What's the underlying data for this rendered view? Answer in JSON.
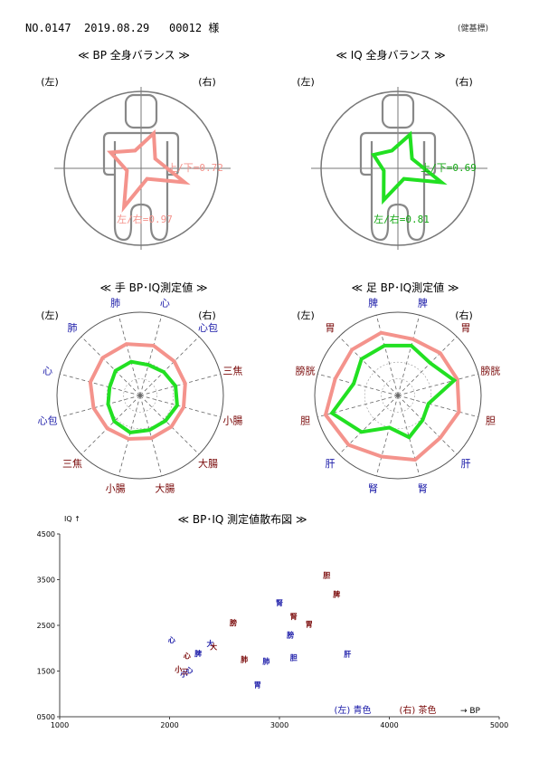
{
  "header": {
    "no": "NO.0147",
    "date": "2019.08.29",
    "id": "00012",
    "honorific": "様",
    "right_note": "(健基標)"
  },
  "side_labels": {
    "left": "(左)",
    "right": "(右)"
  },
  "balance_bp": {
    "title": "≪ BP 全身バランス ≫",
    "color": "#f4938c",
    "updown_label": "上/下=0.72",
    "leftright_label": "左/右=0.97",
    "updown": 0.72,
    "leftright": 0.97
  },
  "balance_iq": {
    "title": "≪ IQ 全身バランス ≫",
    "color": "#22e022",
    "updown_label": "上/下=0.69",
    "leftright_label": "左/右=0.81",
    "updown": 0.69,
    "leftright": 0.81
  },
  "hand_radar": {
    "title": "≪ 手 BP･IQ測定値 ≫",
    "labels": [
      "肺",
      "肺",
      "心",
      "心包",
      "三焦",
      "小腸",
      "大腸",
      "大腸",
      "小腸",
      "三焦",
      "心包",
      "心"
    ],
    "label_colors": [
      "blue",
      "blue",
      "blue",
      "blue",
      "brown",
      "brown",
      "brown",
      "brown",
      "brown",
      "brown",
      "blue",
      "blue"
    ],
    "bp": [
      0.64,
      0.64,
      0.62,
      0.58,
      0.56,
      0.54,
      0.53,
      0.53,
      0.54,
      0.56,
      0.58,
      0.62
    ],
    "iq": [
      0.42,
      0.42,
      0.38,
      0.4,
      0.44,
      0.46,
      0.43,
      0.43,
      0.46,
      0.44,
      0.4,
      0.38
    ]
  },
  "foot_radar": {
    "title": "≪ 足 BP･IQ測定値 ≫",
    "labels": [
      "脾",
      "胃",
      "膀胱",
      "胆",
      "肝",
      "腎",
      "腎",
      "肝",
      "胆",
      "膀胱",
      "胃",
      "脾"
    ],
    "label_colors": [
      "blue",
      "brown",
      "brown",
      "brown",
      "blue",
      "blue",
      "blue",
      "blue",
      "brown",
      "brown",
      "brown",
      "blue"
    ],
    "bp": [
      0.78,
      0.78,
      0.78,
      0.9,
      0.84,
      0.76,
      0.8,
      0.72,
      0.76,
      0.74,
      0.72,
      0.7
    ],
    "iq": [
      0.62,
      0.62,
      0.55,
      0.82,
      0.62,
      0.4,
      0.52,
      0.42,
      0.38,
      0.7,
      0.55,
      0.62
    ]
  },
  "chart_data": {
    "type": "scatter",
    "title": "≪ BP･IQ 測定値散布図 ≫",
    "xlabel": "→ BP",
    "ylabel": "IQ ↑",
    "xlim": [
      1000,
      5000
    ],
    "ylim": [
      500,
      4500
    ],
    "xticks": [
      "1000",
      "2000",
      "3000",
      "4000",
      "5000"
    ],
    "yticks": [
      "0500",
      "1500",
      "2500",
      "3500",
      "4500"
    ],
    "legend_left": "(左) 青色",
    "legend_right": "(右) 茶色",
    "colors": {
      "left": "#1a1aa8",
      "right": "#7a0a0a"
    },
    "points": [
      {
        "label": "心",
        "x": 2020,
        "y": 2120,
        "side": "left"
      },
      {
        "label": "脾",
        "x": 2260,
        "y": 1830,
        "side": "left"
      },
      {
        "label": "大",
        "x": 2370,
        "y": 2040,
        "side": "left"
      },
      {
        "label": "小",
        "x": 2130,
        "y": 1380,
        "side": "left"
      },
      {
        "label": "心",
        "x": 2180,
        "y": 1460,
        "side": "left"
      },
      {
        "label": "胃",
        "x": 2800,
        "y": 1140,
        "side": "left"
      },
      {
        "label": "肺",
        "x": 2880,
        "y": 1660,
        "side": "left"
      },
      {
        "label": "肝",
        "x": 3620,
        "y": 1820,
        "side": "left"
      },
      {
        "label": "胆",
        "x": 3130,
        "y": 1740,
        "side": "left"
      },
      {
        "label": "腎",
        "x": 3000,
        "y": 2940,
        "side": "left"
      },
      {
        "label": "膀",
        "x": 3100,
        "y": 2230,
        "side": "left"
      },
      {
        "label": "心",
        "x": 2160,
        "y": 1780,
        "side": "right"
      },
      {
        "label": "大",
        "x": 2400,
        "y": 1980,
        "side": "right"
      },
      {
        "label": "三",
        "x": 2140,
        "y": 1430,
        "side": "right"
      },
      {
        "label": "小",
        "x": 2080,
        "y": 1480,
        "side": "right"
      },
      {
        "label": "膀",
        "x": 2580,
        "y": 2500,
        "side": "right"
      },
      {
        "label": "肺",
        "x": 2680,
        "y": 1700,
        "side": "right"
      },
      {
        "label": "腎",
        "x": 3130,
        "y": 2640,
        "side": "right"
      },
      {
        "label": "胃",
        "x": 3270,
        "y": 2470,
        "side": "right"
      },
      {
        "label": "脾",
        "x": 3520,
        "y": 3120,
        "side": "right"
      },
      {
        "label": "胆",
        "x": 3430,
        "y": 3540,
        "side": "right"
      }
    ]
  }
}
